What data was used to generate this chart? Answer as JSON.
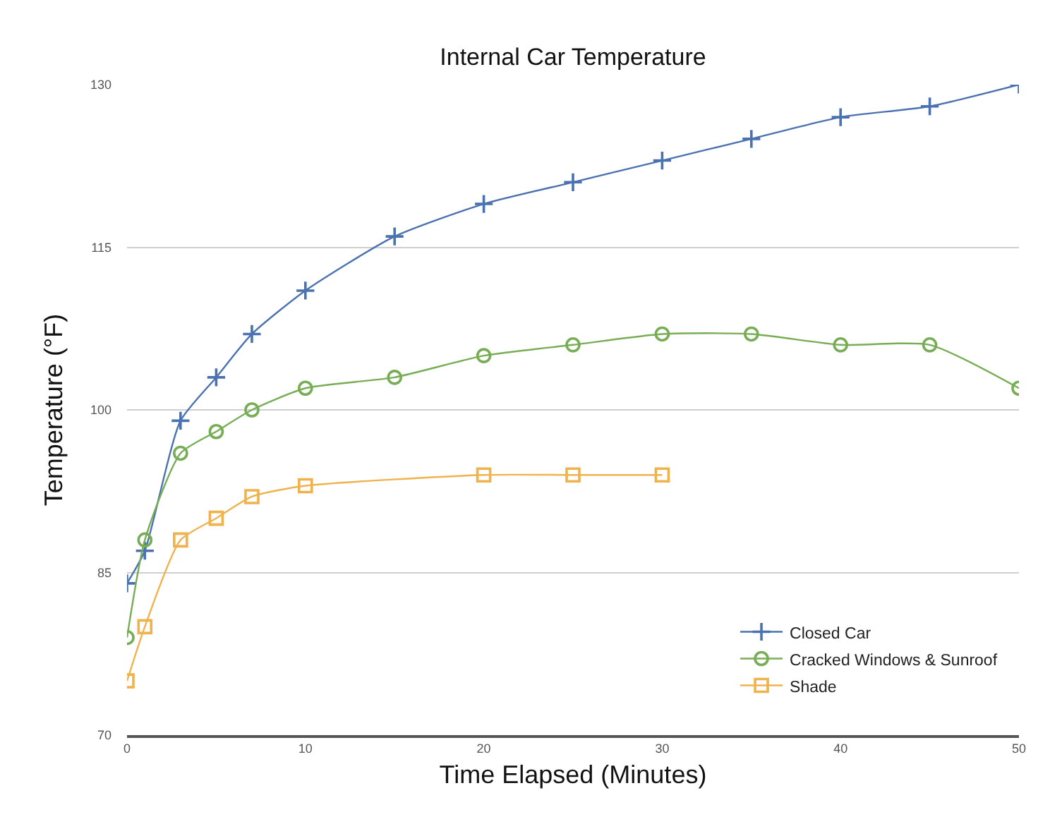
{
  "chart_data": {
    "type": "line",
    "title": "Internal Car Temperature",
    "xlabel": "Time Elapsed (Minutes)",
    "ylabel": "Temperature (°F)",
    "x": [
      0,
      1,
      3,
      5,
      7,
      10,
      15,
      20,
      25,
      30,
      35,
      40,
      45,
      50
    ],
    "series": [
      {
        "name": "Closed Car",
        "color": "#4a72b0",
        "marker": "cross",
        "values": [
          84,
          87,
          99,
          103,
          107,
          111,
          116,
          119,
          121,
          123,
          125,
          127,
          128,
          130
        ]
      },
      {
        "name": "Cracked Windows & Sunroof",
        "color": "#77ad55",
        "marker": "circle",
        "values": [
          79,
          88,
          96,
          98,
          100,
          102,
          103,
          105,
          106,
          107,
          107,
          106,
          106,
          102
        ]
      },
      {
        "name": "Shade",
        "color": "#f0b24c",
        "marker": "square",
        "x": [
          0,
          1,
          3,
          5,
          7,
          10,
          20,
          25,
          30
        ],
        "values": [
          75,
          80,
          88,
          90,
          92,
          93,
          94,
          94,
          94
        ]
      }
    ],
    "xlim": [
      0,
      50
    ],
    "xticks": [
      0,
      10,
      20,
      30,
      40,
      50
    ],
    "ylim": [
      70,
      130
    ],
    "yticks": [
      70,
      85,
      100,
      115,
      130
    ],
    "grid": "y",
    "legend": "bottom right",
    "line_style": "solid"
  }
}
